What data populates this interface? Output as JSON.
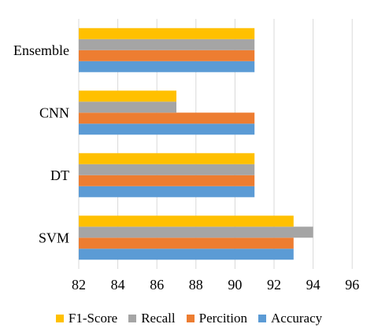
{
  "chart_data": {
    "type": "bar",
    "orientation": "horizontal",
    "categories": [
      "SVM",
      "DT",
      "CNN",
      "Ensemble"
    ],
    "series": [
      {
        "name": "Accuracy",
        "color": "#5B9BD5",
        "values": [
          93,
          91,
          91,
          91
        ]
      },
      {
        "name": "Percition",
        "color": "#ED7D31",
        "values": [
          93,
          91,
          91,
          91
        ]
      },
      {
        "name": "Recall",
        "color": "#A5A5A5",
        "values": [
          94,
          91,
          87,
          91
        ]
      },
      {
        "name": "F1-Score",
        "color": "#FFC000",
        "values": [
          93,
          91,
          87,
          91
        ]
      }
    ],
    "xlim": [
      82,
      97
    ],
    "xticks": [
      "82",
      "84",
      "86",
      "88",
      "90",
      "92",
      "94",
      "96"
    ],
    "grid": "vertical",
    "legend_position": "bottom",
    "title": "",
    "xlabel": "",
    "ylabel": ""
  }
}
